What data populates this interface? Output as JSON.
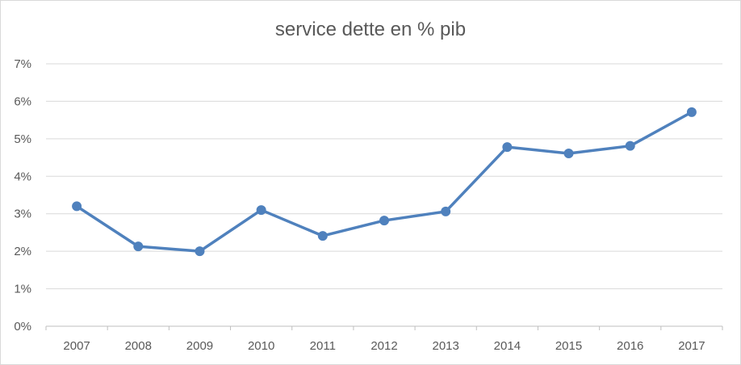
{
  "chart_data": {
    "type": "line",
    "title": "service dette en % pib",
    "xlabel": "",
    "ylabel": "",
    "categories": [
      "2007",
      "2008",
      "2009",
      "2010",
      "2011",
      "2012",
      "2013",
      "2014",
      "2015",
      "2016",
      "2017"
    ],
    "series": [
      {
        "values": [
          3.2,
          2.13,
          2.0,
          3.1,
          2.41,
          2.82,
          3.06,
          4.78,
          4.61,
          4.81,
          5.71
        ],
        "color": "#4f81bd"
      }
    ],
    "ylim": [
      0,
      7
    ],
    "yticks": [
      0,
      1,
      2,
      3,
      4,
      5,
      6,
      7
    ],
    "ytick_labels": [
      "0%",
      "1%",
      "2%",
      "3%",
      "4%",
      "5%",
      "6%",
      "7%"
    ],
    "grid": true,
    "legend": "none",
    "colors": {
      "gridline": "#d9d9d9",
      "axis": "#bfbfbf",
      "text": "#595959"
    }
  }
}
